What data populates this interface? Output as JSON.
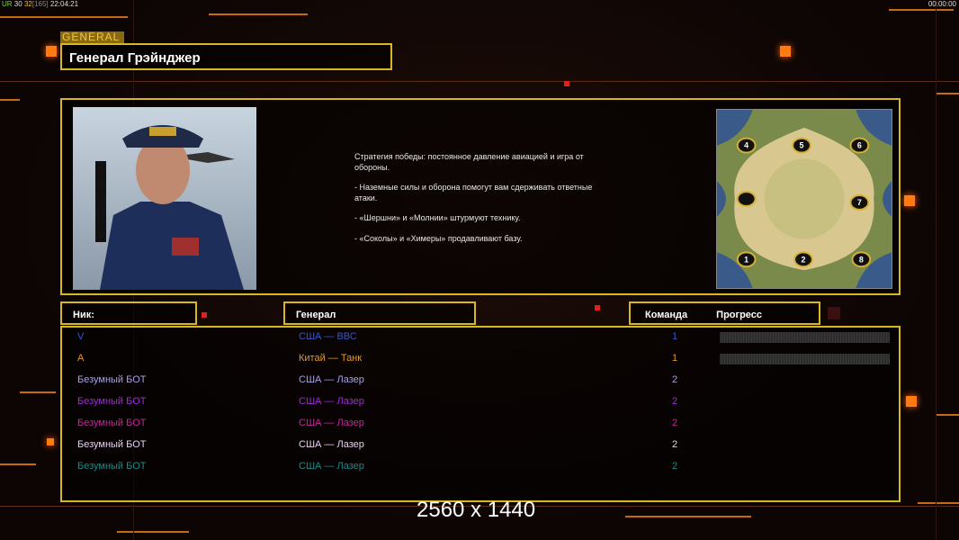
{
  "hud": {
    "fps_parts": [
      "UR",
      "30",
      "32",
      "[165]",
      "22:04:21"
    ],
    "timer": "00:00:00"
  },
  "general": {
    "tag": "GENERAL",
    "name": "Генерал Грэйнджер"
  },
  "description": [
    "Стратегия победы: постоянное давление авиацией и игра от\n обороны.",
    "- Наземные силы и оборона помогут вам сдерживать ответные\n атаки.",
    "- «Шершни» и «Молнии» штурмуют технику.",
    "- «Соколы» и «Химеры» продавливают базу."
  ],
  "map": {
    "start_positions": [
      "1",
      "2",
      "3",
      "4",
      "5",
      "6",
      "7",
      "8"
    ]
  },
  "columns": {
    "nick": "Ник:",
    "general": "Генерал",
    "team": "Команда",
    "progress": "Прогресс"
  },
  "players": [
    {
      "nick": "V",
      "general": "США — ВВС",
      "team": "1",
      "color": "#3a56c8",
      "progress": 0
    },
    {
      "nick": "A",
      "general": "Китай — Танк",
      "team": "1",
      "color": "#e09a30",
      "progress": 0
    },
    {
      "nick": "Безумный БОТ",
      "general": "США — Лазер",
      "team": "2",
      "color": "#a8a0e8"
    },
    {
      "nick": "Безумный БОТ",
      "general": "США — Лазер",
      "team": "2",
      "color": "#9a30d0"
    },
    {
      "nick": "Безумный БОТ",
      "general": "США — Лазер",
      "team": "2",
      "color": "#c02a98"
    },
    {
      "nick": "Безумный БОТ",
      "general": "США — Лазер",
      "team": "2",
      "color": "#e8d0f0"
    },
    {
      "nick": "Безумный БОТ",
      "general": "США — Лазер",
      "team": "2",
      "color": "#1e8a8a"
    }
  ],
  "resolution": "2560 x 1440",
  "colors": {
    "frame": "#d8b820",
    "accent": "#ff7a10"
  }
}
